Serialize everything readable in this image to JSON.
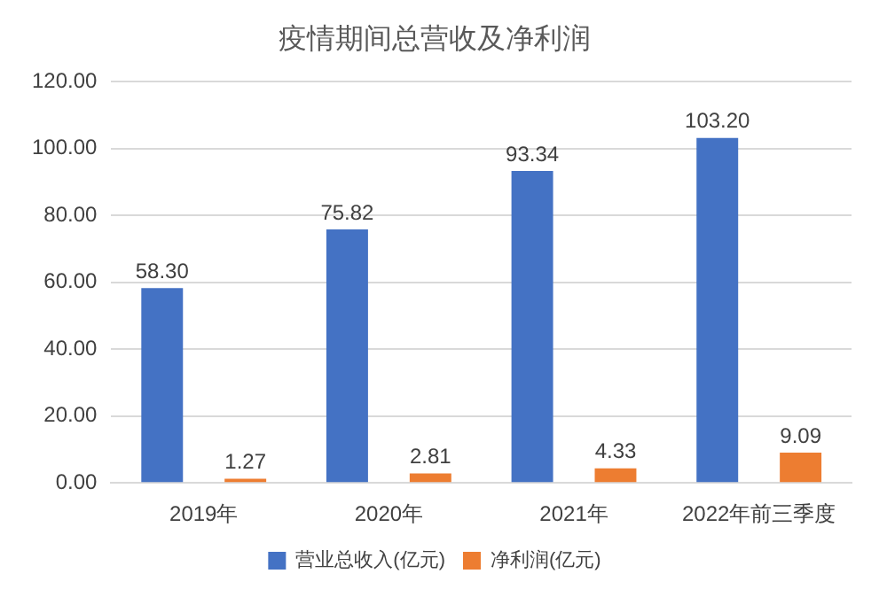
{
  "chart_data": {
    "type": "bar",
    "title": "疫情期间总营收及净利润",
    "categories": [
      "2019年",
      "2020年",
      "2021年",
      "2022年前三季度"
    ],
    "series": [
      {
        "name": "营业总收入(亿元)",
        "color": "#4472c4",
        "values": [
          58.3,
          75.82,
          93.34,
          103.2
        ],
        "value_labels": [
          "58.30",
          "75.82",
          "93.34",
          "103.20"
        ]
      },
      {
        "name": "净利润(亿元)",
        "color": "#ed7d31",
        "values": [
          1.27,
          2.81,
          4.33,
          9.09
        ],
        "value_labels": [
          "1.27",
          "2.81",
          "4.33",
          "9.09"
        ]
      }
    ],
    "ylim": [
      0,
      120
    ],
    "yticks": [
      {
        "value": 0,
        "label": "0.00"
      },
      {
        "value": 20,
        "label": "20.00"
      },
      {
        "value": 40,
        "label": "40.00"
      },
      {
        "value": 60,
        "label": "60.00"
      },
      {
        "value": 80,
        "label": "80.00"
      },
      {
        "value": 100,
        "label": "100.00"
      },
      {
        "value": 120,
        "label": "120.00"
      }
    ],
    "grid": "y",
    "legend": "bottom"
  }
}
